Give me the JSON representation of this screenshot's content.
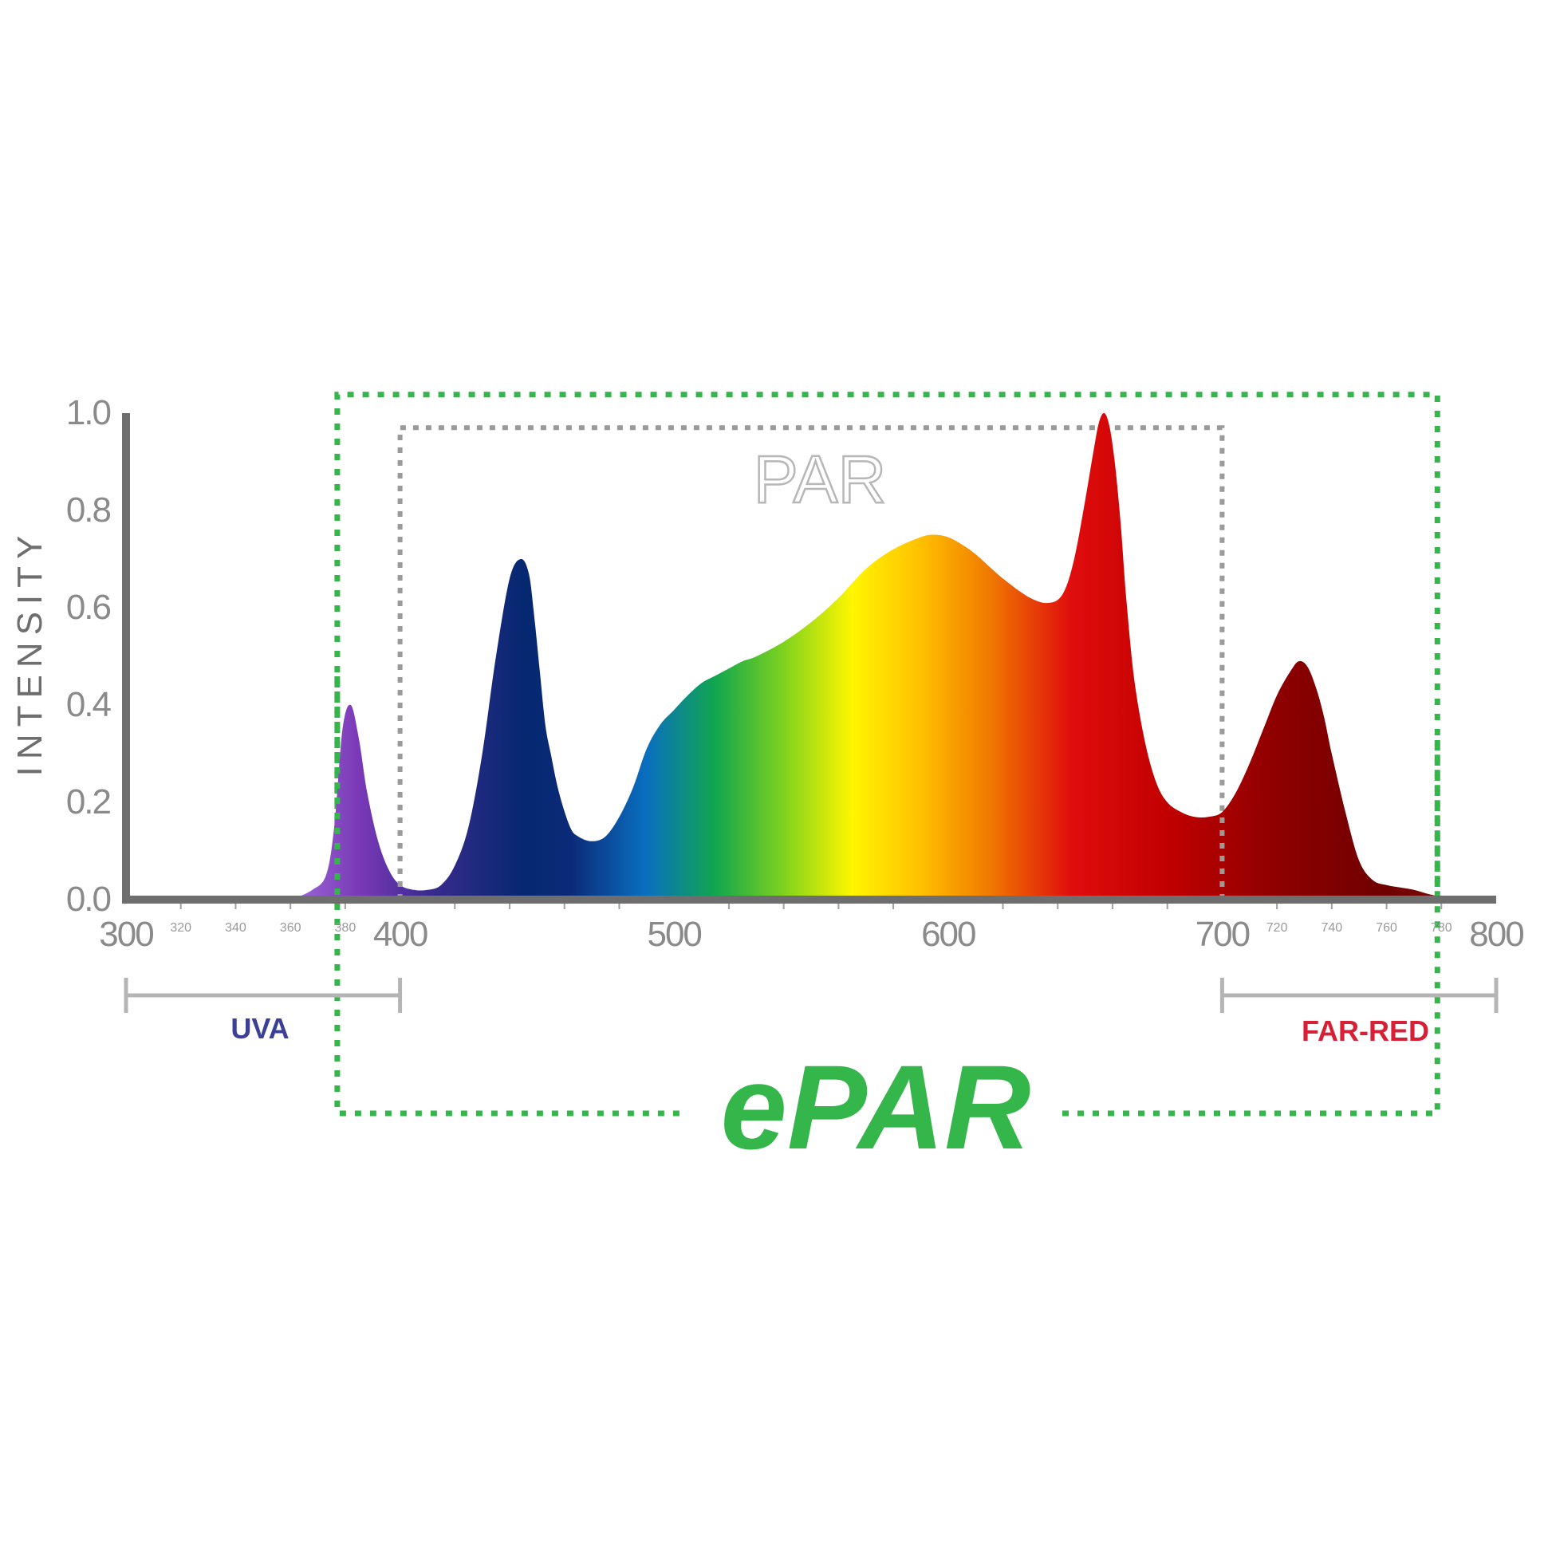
{
  "chart_data": {
    "type": "area",
    "title": "",
    "xlabel": "",
    "ylabel": "INTENSITY",
    "xlim": [
      300,
      800
    ],
    "ylim": [
      0,
      1.0
    ],
    "x_major_ticks": [
      "300",
      "400",
      "500",
      "600",
      "700",
      "800"
    ],
    "x_minor_ticks": [
      {
        "x": 320,
        "label": "320"
      },
      {
        "x": 340,
        "label": "340"
      },
      {
        "x": 360,
        "label": "360"
      },
      {
        "x": 380,
        "label": "380"
      },
      {
        "x": 720,
        "label": "720"
      },
      {
        "x": 740,
        "label": "740"
      },
      {
        "x": 760,
        "label": "760"
      },
      {
        "x": 780,
        "label": "780"
      }
    ],
    "y_ticks": [
      "0.0",
      "0.2",
      "0.4",
      "0.6",
      "0.8",
      "1.0"
    ],
    "grid": false,
    "legend": "none",
    "series": [
      {
        "x": [
          300,
          355,
          362,
          368,
          373,
          376,
          379,
          382,
          385,
          388,
          392,
          396,
          400,
          405,
          410,
          415,
          420,
          425,
          430,
          435,
          440,
          444,
          447,
          449,
          451,
          453,
          455,
          458,
          462,
          465,
          470,
          475,
          480,
          485,
          490,
          495,
          500,
          505,
          510,
          515,
          520,
          525,
          530,
          540,
          550,
          560,
          570,
          580,
          590,
          595,
          600,
          605,
          610,
          620,
          630,
          637,
          642,
          646,
          650,
          653,
          655,
          657,
          659,
          661,
          663,
          665,
          668,
          672,
          676,
          680,
          685,
          690,
          695,
          700,
          705,
          710,
          715,
          720,
          725,
          728,
          731,
          734,
          737,
          740,
          745,
          750,
          755,
          760,
          765,
          770,
          775,
          780,
          785,
          790,
          795,
          800
        ],
        "y": [
          0.0,
          0.0,
          0.005,
          0.02,
          0.05,
          0.15,
          0.35,
          0.4,
          0.33,
          0.22,
          0.12,
          0.06,
          0.03,
          0.02,
          0.02,
          0.03,
          0.07,
          0.15,
          0.3,
          0.5,
          0.66,
          0.7,
          0.67,
          0.58,
          0.47,
          0.36,
          0.3,
          0.22,
          0.15,
          0.13,
          0.12,
          0.13,
          0.17,
          0.23,
          0.31,
          0.36,
          0.39,
          0.42,
          0.445,
          0.46,
          0.475,
          0.49,
          0.5,
          0.53,
          0.57,
          0.62,
          0.68,
          0.72,
          0.745,
          0.75,
          0.745,
          0.73,
          0.71,
          0.66,
          0.62,
          0.61,
          0.63,
          0.7,
          0.82,
          0.92,
          0.98,
          1.0,
          0.97,
          0.89,
          0.77,
          0.62,
          0.45,
          0.32,
          0.24,
          0.2,
          0.18,
          0.17,
          0.17,
          0.18,
          0.22,
          0.28,
          0.35,
          0.42,
          0.47,
          0.49,
          0.48,
          0.44,
          0.38,
          0.3,
          0.18,
          0.08,
          0.04,
          0.03,
          0.025,
          0.02,
          0.012,
          0.006,
          0.003,
          0.001,
          0.0,
          0.0
        ]
      }
    ],
    "annotations": {
      "par": {
        "label": "PAR",
        "x_range": [
          400,
          700
        ],
        "y_top": 0.97,
        "style": "dotted-grey"
      },
      "epar": {
        "label": "ePAR",
        "x_range": [
          380,
          780
        ],
        "y_top": 1.03,
        "style": "dotted-green"
      },
      "uva": {
        "label": "UVA",
        "x_range": [
          300,
          400
        ]
      },
      "far_red": {
        "label": "FAR-RED",
        "x_range": [
          700,
          800
        ]
      }
    },
    "colors": {
      "axis": "#6e6e6e",
      "par_box": "#9a9a9a",
      "epar_box": "#35b64a",
      "uva_label": "#3b3f95",
      "far_red_label": "#d71f35",
      "range_bracket": "#b5b5b5"
    },
    "gradient_stops": [
      {
        "nm": 360,
        "color": "#a06ad8"
      },
      {
        "nm": 385,
        "color": "#7a39b7"
      },
      {
        "nm": 410,
        "color": "#3b2b8f"
      },
      {
        "nm": 445,
        "color": "#052870"
      },
      {
        "nm": 462,
        "color": "#0b2a78"
      },
      {
        "nm": 490,
        "color": "#0a6fc0"
      },
      {
        "nm": 515,
        "color": "#11a64e"
      },
      {
        "nm": 540,
        "color": "#7fd21e"
      },
      {
        "nm": 565,
        "color": "#fff600"
      },
      {
        "nm": 590,
        "color": "#ffc000"
      },
      {
        "nm": 615,
        "color": "#f07a00"
      },
      {
        "nm": 645,
        "color": "#e00d0d"
      },
      {
        "nm": 680,
        "color": "#c10000"
      },
      {
        "nm": 720,
        "color": "#8e0000"
      },
      {
        "nm": 760,
        "color": "#6f0000"
      },
      {
        "nm": 800,
        "color": "#8a1a1a"
      }
    ]
  }
}
